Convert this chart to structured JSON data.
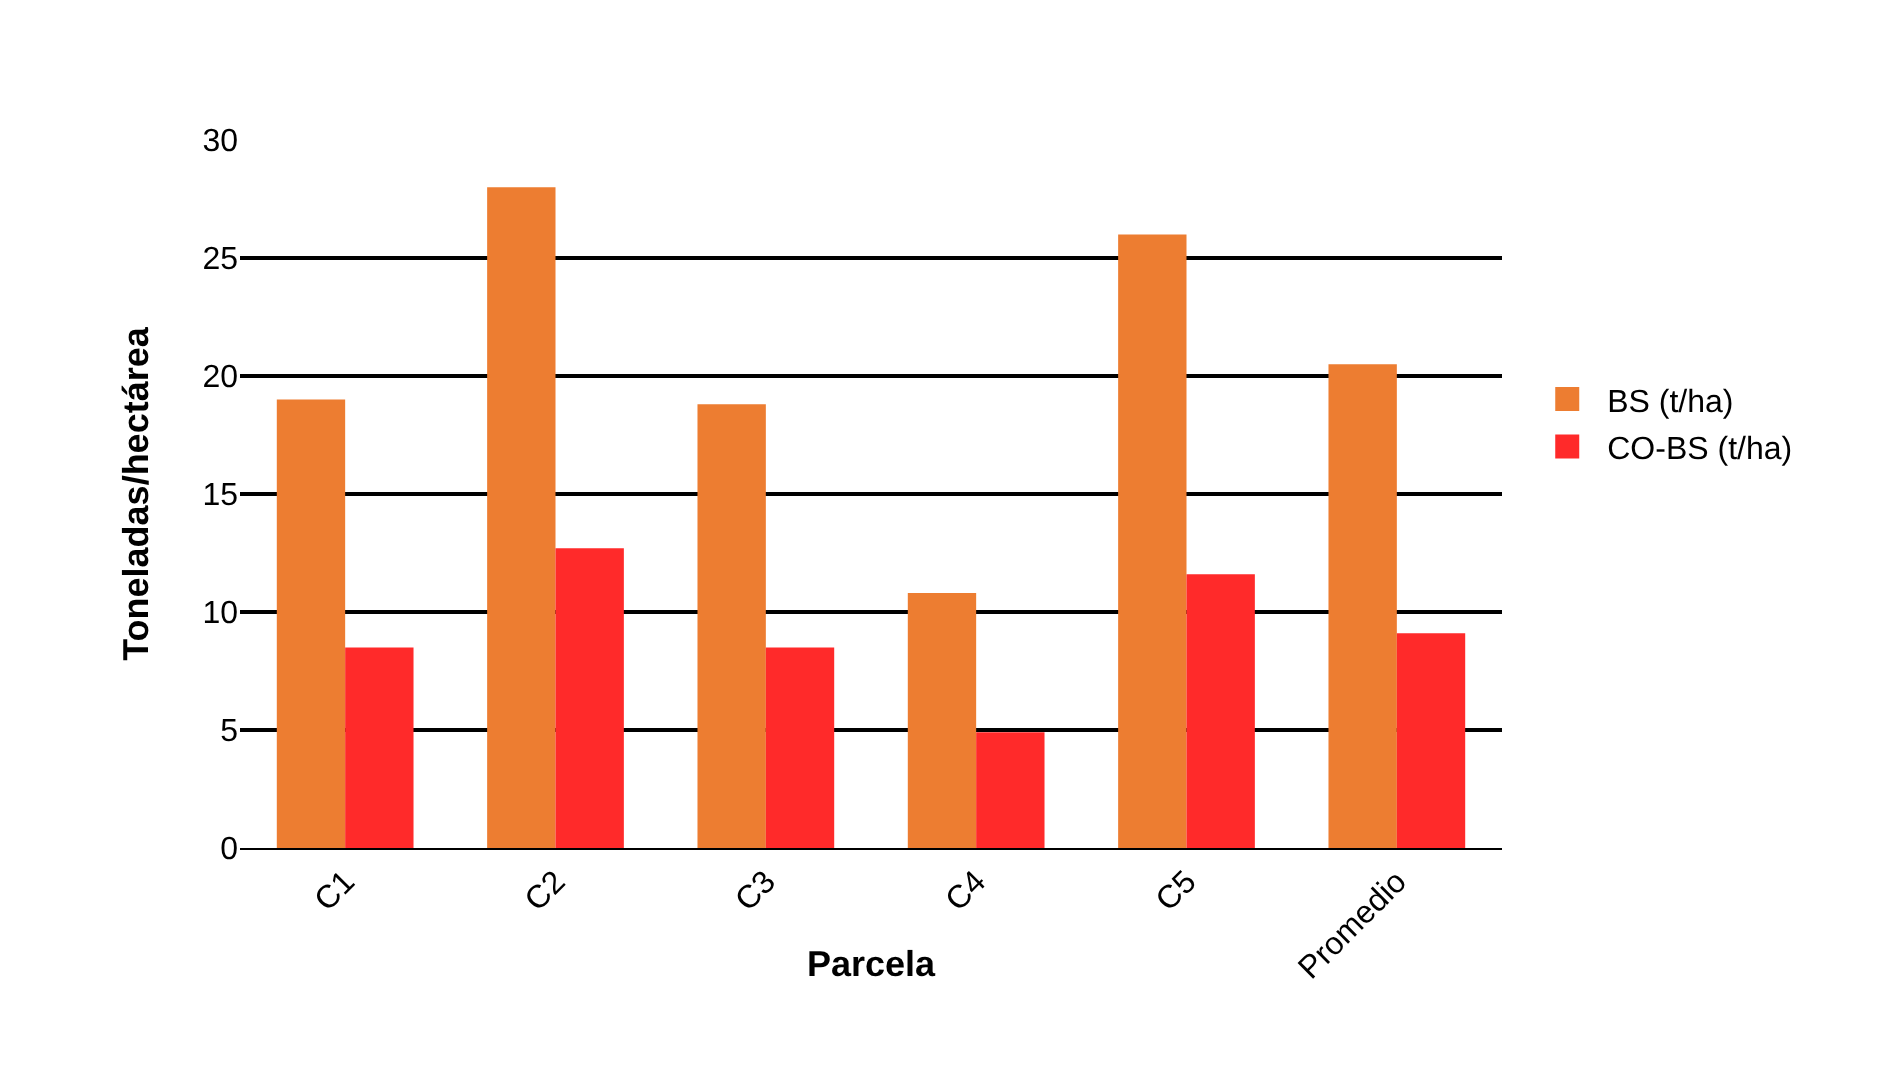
{
  "chart_data": {
    "type": "bar",
    "xlabel": "Parcela",
    "ylabel": "Toneladas/hectárea",
    "categories": [
      "C1",
      "C2",
      "C3",
      "C4",
      "C5",
      "Promedio"
    ],
    "series": [
      {
        "name": "BS (t/ha)",
        "color": "#ed7d31",
        "values": [
          19,
          28,
          18.8,
          10.8,
          26,
          20.5
        ]
      },
      {
        "name": "CO-BS (t/ha)",
        "color": "#ff2a2a",
        "values": [
          8.5,
          12.7,
          8.5,
          4.9,
          11.6,
          9.1
        ]
      }
    ],
    "ylim": [
      0,
      30
    ],
    "yticks": [
      0,
      5,
      10,
      15,
      20,
      25,
      30
    ],
    "grid": "y",
    "legend": "right"
  }
}
